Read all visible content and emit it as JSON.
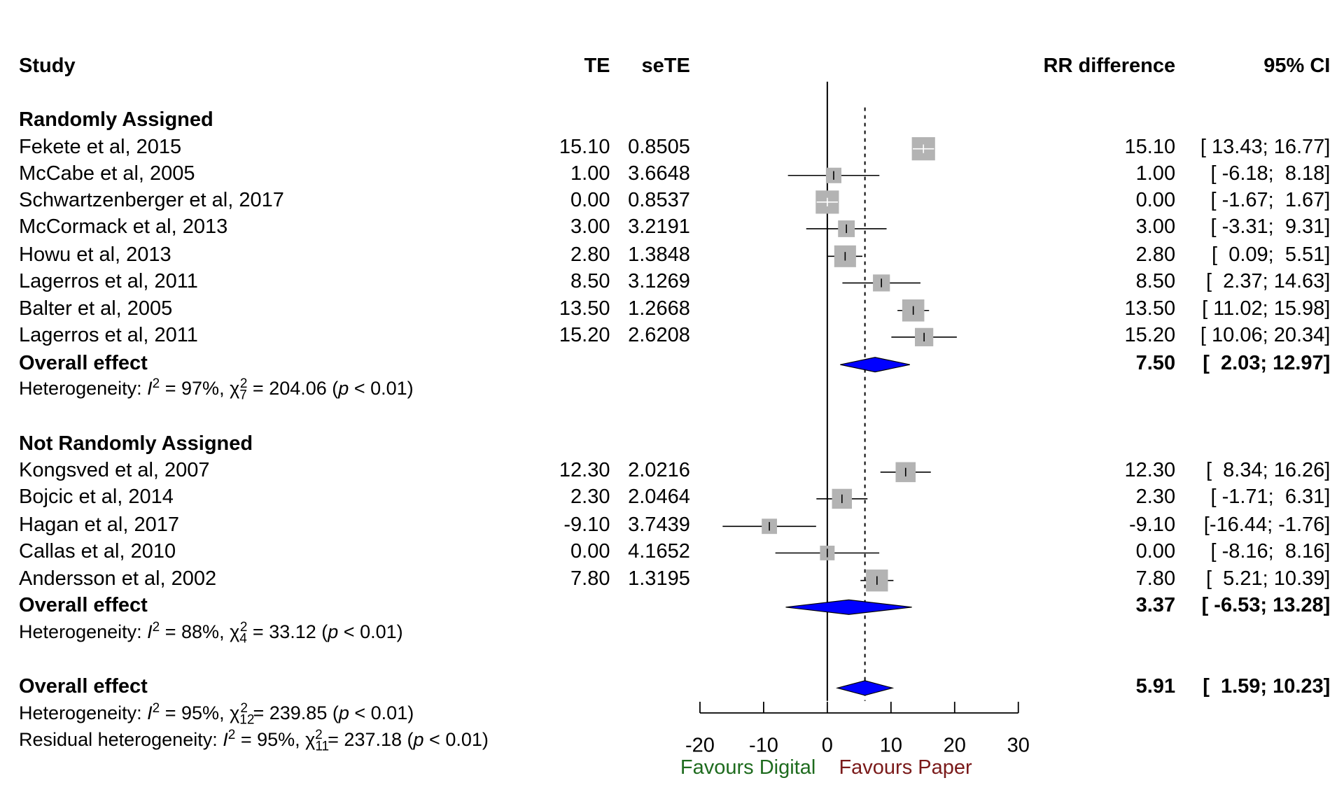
{
  "headers": {
    "study": "Study",
    "te": "TE",
    "sete": "seTE",
    "rr": "RR difference",
    "ci": "95% CI"
  },
  "groups": [
    {
      "label": "Randomly Assigned",
      "studies": [
        {
          "name": "Fekete et al, 2015",
          "te": "15.10",
          "sete": "0.8505",
          "rr": "15.10",
          "ci": "[ 13.43; 16.77]",
          "est": 15.1,
          "lo": 13.43,
          "hi": 16.77
        },
        {
          "name": "McCabe et al, 2005",
          "te": "1.00",
          "sete": "3.6648",
          "rr": "1.00",
          "ci": "[ -6.18;  8.18]",
          "est": 1.0,
          "lo": -6.18,
          "hi": 8.18
        },
        {
          "name": "Schwartzenberger et al, 2017",
          "te": "0.00",
          "sete": "0.8537",
          "rr": "0.00",
          "ci": "[ -1.67;  1.67]",
          "est": 0.0,
          "lo": -1.67,
          "hi": 1.67
        },
        {
          "name": "McCormack et al, 2013",
          "te": "3.00",
          "sete": "3.2191",
          "rr": "3.00",
          "ci": "[ -3.31;  9.31]",
          "est": 3.0,
          "lo": -3.31,
          "hi": 9.31
        },
        {
          "name": "Howu et al, 2013",
          "te": "2.80",
          "sete": "1.3848",
          "rr": "2.80",
          "ci": "[  0.09;  5.51]",
          "est": 2.8,
          "lo": 0.09,
          "hi": 5.51
        },
        {
          "name": "Lagerros et al, 2011",
          "te": "8.50",
          "sete": "3.1269",
          "rr": "8.50",
          "ci": "[  2.37; 14.63]",
          "est": 8.5,
          "lo": 2.37,
          "hi": 14.63
        },
        {
          "name": "Balter et al, 2005",
          "te": "13.50",
          "sete": "1.2668",
          "rr": "13.50",
          "ci": "[ 11.02; 15.98]",
          "est": 13.5,
          "lo": 11.02,
          "hi": 15.98
        },
        {
          "name": "Lagerros et al, 2011",
          "te": "15.20",
          "sete": "2.6208",
          "rr": "15.20",
          "ci": "[ 10.06; 20.34]",
          "est": 15.2,
          "lo": 10.06,
          "hi": 20.34
        }
      ],
      "overall": {
        "label": "Overall effect",
        "rr": "7.50",
        "ci": "[  2.03; 12.97]",
        "est": 7.5,
        "lo": 2.03,
        "hi": 12.97
      },
      "heterogeneity": {
        "prefix": "Heterogeneity: ",
        "i2": "97%",
        "df": "7",
        "chi2": "204.06",
        "p": "0.01"
      }
    },
    {
      "label": "Not Randomly Assigned",
      "studies": [
        {
          "name": "Kongsved et al, 2007",
          "te": "12.30",
          "sete": "2.0216",
          "rr": "12.30",
          "ci": "[  8.34; 16.26]",
          "est": 12.3,
          "lo": 8.34,
          "hi": 16.26
        },
        {
          "name": "Bojcic et al, 2014",
          "te": "2.30",
          "sete": "2.0464",
          "rr": "2.30",
          "ci": "[ -1.71;  6.31]",
          "est": 2.3,
          "lo": -1.71,
          "hi": 6.31
        },
        {
          "name": "Hagan et al, 2017",
          "te": "-9.10",
          "sete": "3.7439",
          "rr": "-9.10",
          "ci": "[-16.44; -1.76]",
          "est": -9.1,
          "lo": -16.44,
          "hi": -1.76
        },
        {
          "name": "Callas et al, 2010",
          "te": "0.00",
          "sete": "4.1652",
          "rr": "0.00",
          "ci": "[ -8.16;  8.16]",
          "est": 0.0,
          "lo": -8.16,
          "hi": 8.16
        },
        {
          "name": "Andersson et al, 2002",
          "te": "7.80",
          "sete": "1.3195",
          "rr": "7.80",
          "ci": "[  5.21; 10.39]",
          "est": 7.8,
          "lo": 5.21,
          "hi": 10.39
        }
      ],
      "overall": {
        "label": "Overall effect",
        "rr": "3.37",
        "ci": "[ -6.53; 13.28]",
        "est": 3.37,
        "lo": -6.53,
        "hi": 13.28
      },
      "heterogeneity": {
        "prefix": "Heterogeneity: ",
        "i2": "88%",
        "df": "4",
        "chi2": "33.12",
        "p": "0.01"
      }
    }
  ],
  "overall": {
    "label": "Overall effect",
    "rr": "5.91",
    "ci": "[  1.59; 10.23]",
    "est": 5.91,
    "lo": 1.59,
    "hi": 10.23
  },
  "heterogeneity": {
    "prefix": "Heterogeneity: ",
    "i2": "95%",
    "df": "12",
    "chi2": "239.85",
    "p": "0.01"
  },
  "residual_heterogeneity": {
    "prefix": "Residual heterogeneity: ",
    "i2": "95%",
    "df": "11",
    "chi2": "237.18",
    "p": "0.01"
  },
  "chart_data": {
    "type": "scatter",
    "subtype": "forest-plot",
    "xlim": [
      -20,
      30
    ],
    "xticks": [
      -20,
      -10,
      0,
      10,
      20,
      30
    ],
    "reference_line": 0,
    "overall_line": 5.91,
    "labels": {
      "left": "Favours Digital",
      "right": "Favours Paper"
    },
    "colors": {
      "left_label": "#1e6b1e",
      "right_label": "#7a1a1a",
      "diamond": "#0000ff",
      "box": "#b3b3b3"
    }
  }
}
